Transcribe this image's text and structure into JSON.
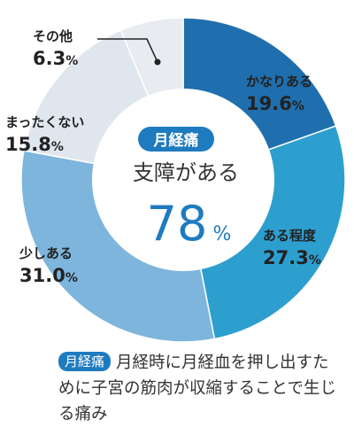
{
  "colors": {
    "accent": "#1f7bc0",
    "slices": [
      "#1f6fae",
      "#2d9fcf",
      "#7eb5dd",
      "#dfe6ee",
      "#e8ecf1"
    ]
  },
  "center": {
    "badge": "月経痛",
    "label": "支障がある",
    "value": "78",
    "unit": "%"
  },
  "note": {
    "badge": "月経痛",
    "text": "月経時に月経血を押し出すために子宮の筋肉が収縮することで生じる痛み"
  },
  "chart_data": {
    "type": "pie",
    "percent_unit": "%",
    "categories": [
      "かなりある",
      "ある程度",
      "少しある",
      "まったくない",
      "その他"
    ],
    "values": [
      19.6,
      27.3,
      31.0,
      15.8,
      6.3
    ],
    "value_labels": [
      "19.6",
      "27.3",
      "31.0",
      "15.8",
      "6.3"
    ],
    "donut": true
  }
}
